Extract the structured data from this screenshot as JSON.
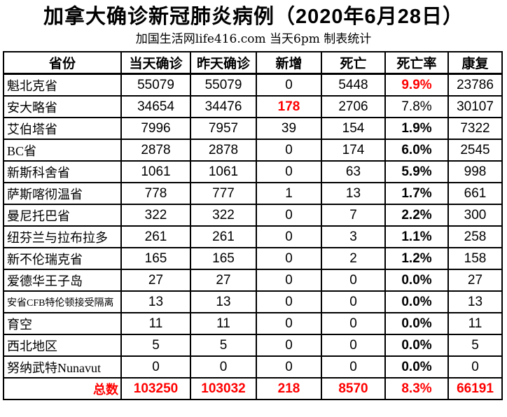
{
  "colors": {
    "accent_red": "#ff0000",
    "border_black": "#000000",
    "background": "#ffffff"
  },
  "chart_data": {
    "type": "table",
    "title": "加拿大确诊新冠肺炎病例（2020年6月28日）",
    "subtitle": "加国生活网life416.com 当天6pm 制表统计",
    "columns": [
      "省份",
      "当天确诊",
      "昨天确诊",
      "新增",
      "死亡",
      "死亡率",
      "康复"
    ],
    "rows": [
      {
        "cells": [
          {
            "text": "魁北克省"
          },
          {
            "text": "55079"
          },
          {
            "text": "55079"
          },
          {
            "text": "0"
          },
          {
            "text": "5448"
          },
          {
            "text": "9.9%",
            "red": true,
            "bold": true
          },
          {
            "text": "23786"
          }
        ]
      },
      {
        "cells": [
          {
            "text": "安大略省"
          },
          {
            "text": "34654"
          },
          {
            "text": "34476"
          },
          {
            "text": "178",
            "red": true,
            "bold": true
          },
          {
            "text": "2706"
          },
          {
            "text": "7.8%"
          },
          {
            "text": "30107"
          }
        ]
      },
      {
        "cells": [
          {
            "text": "艾伯塔省"
          },
          {
            "text": "7996"
          },
          {
            "text": "7957"
          },
          {
            "text": "39"
          },
          {
            "text": "154"
          },
          {
            "text": "1.9%",
            "bold": true
          },
          {
            "text": "7322"
          }
        ]
      },
      {
        "cells": [
          {
            "text": "BC省"
          },
          {
            "text": "2878"
          },
          {
            "text": "2878"
          },
          {
            "text": "0"
          },
          {
            "text": "174"
          },
          {
            "text": "6.0%",
            "bold": true
          },
          {
            "text": "2545"
          }
        ]
      },
      {
        "cells": [
          {
            "text": "新斯科舍省"
          },
          {
            "text": "1061"
          },
          {
            "text": "1061"
          },
          {
            "text": "0"
          },
          {
            "text": "63"
          },
          {
            "text": "5.9%",
            "bold": true
          },
          {
            "text": "998"
          }
        ]
      },
      {
        "cells": [
          {
            "text": "萨斯喀彻温省"
          },
          {
            "text": "778"
          },
          {
            "text": "777"
          },
          {
            "text": "1"
          },
          {
            "text": "13"
          },
          {
            "text": "1.7%",
            "bold": true
          },
          {
            "text": "661"
          }
        ]
      },
      {
        "cells": [
          {
            "text": "曼尼托巴省"
          },
          {
            "text": "322"
          },
          {
            "text": "322"
          },
          {
            "text": "0"
          },
          {
            "text": "7"
          },
          {
            "text": "2.2%",
            "bold": true
          },
          {
            "text": "300"
          }
        ]
      },
      {
        "cells": [
          {
            "text": "纽芬兰与拉布拉多"
          },
          {
            "text": "261"
          },
          {
            "text": "261"
          },
          {
            "text": "0"
          },
          {
            "text": "3"
          },
          {
            "text": "1.1%",
            "bold": true
          },
          {
            "text": "258"
          }
        ]
      },
      {
        "cells": [
          {
            "text": "新不伦瑞克省"
          },
          {
            "text": "165"
          },
          {
            "text": "165"
          },
          {
            "text": "0"
          },
          {
            "text": "2"
          },
          {
            "text": "1.2%",
            "bold": true
          },
          {
            "text": "158"
          }
        ]
      },
      {
        "cells": [
          {
            "text": "爱德华王子岛"
          },
          {
            "text": "27"
          },
          {
            "text": "27"
          },
          {
            "text": "0"
          },
          {
            "text": "0"
          },
          {
            "text": "0.0%",
            "bold": true
          },
          {
            "text": "27"
          }
        ]
      },
      {
        "cells": [
          {
            "text": "安省CFB特伦顿接受隔离",
            "small": true
          },
          {
            "text": "13"
          },
          {
            "text": "13"
          },
          {
            "text": "0"
          },
          {
            "text": "0"
          },
          {
            "text": "0.0%",
            "bold": true
          },
          {
            "text": "13"
          }
        ]
      },
      {
        "cells": [
          {
            "text": "育空"
          },
          {
            "text": "11"
          },
          {
            "text": "11"
          },
          {
            "text": "0"
          },
          {
            "text": "0"
          },
          {
            "text": "0.0%",
            "bold": true
          },
          {
            "text": "11"
          }
        ]
      },
      {
        "cells": [
          {
            "text": "西北地区"
          },
          {
            "text": "5"
          },
          {
            "text": "5"
          },
          {
            "text": "0"
          },
          {
            "text": "0"
          },
          {
            "text": "0.0%",
            "bold": true
          },
          {
            "text": "5"
          }
        ]
      },
      {
        "cells": [
          {
            "text": "努纳武特Nunavut"
          },
          {
            "text": "0"
          },
          {
            "text": "0"
          },
          {
            "text": "0"
          },
          {
            "text": "0"
          },
          {
            "text": "0.0%",
            "bold": true
          },
          {
            "text": "0"
          }
        ]
      },
      {
        "total": true,
        "cells": [
          {
            "text": "总数",
            "red": true,
            "bold": true,
            "align": "right"
          },
          {
            "text": "103250",
            "red": true,
            "bold": true
          },
          {
            "text": "103032",
            "red": true,
            "bold": true
          },
          {
            "text": "218",
            "red": true,
            "bold": true
          },
          {
            "text": "8570",
            "red": true,
            "bold": true
          },
          {
            "text": "8.3%",
            "red": true,
            "bold": true
          },
          {
            "text": "66191",
            "red": true,
            "bold": true
          }
        ]
      }
    ]
  }
}
